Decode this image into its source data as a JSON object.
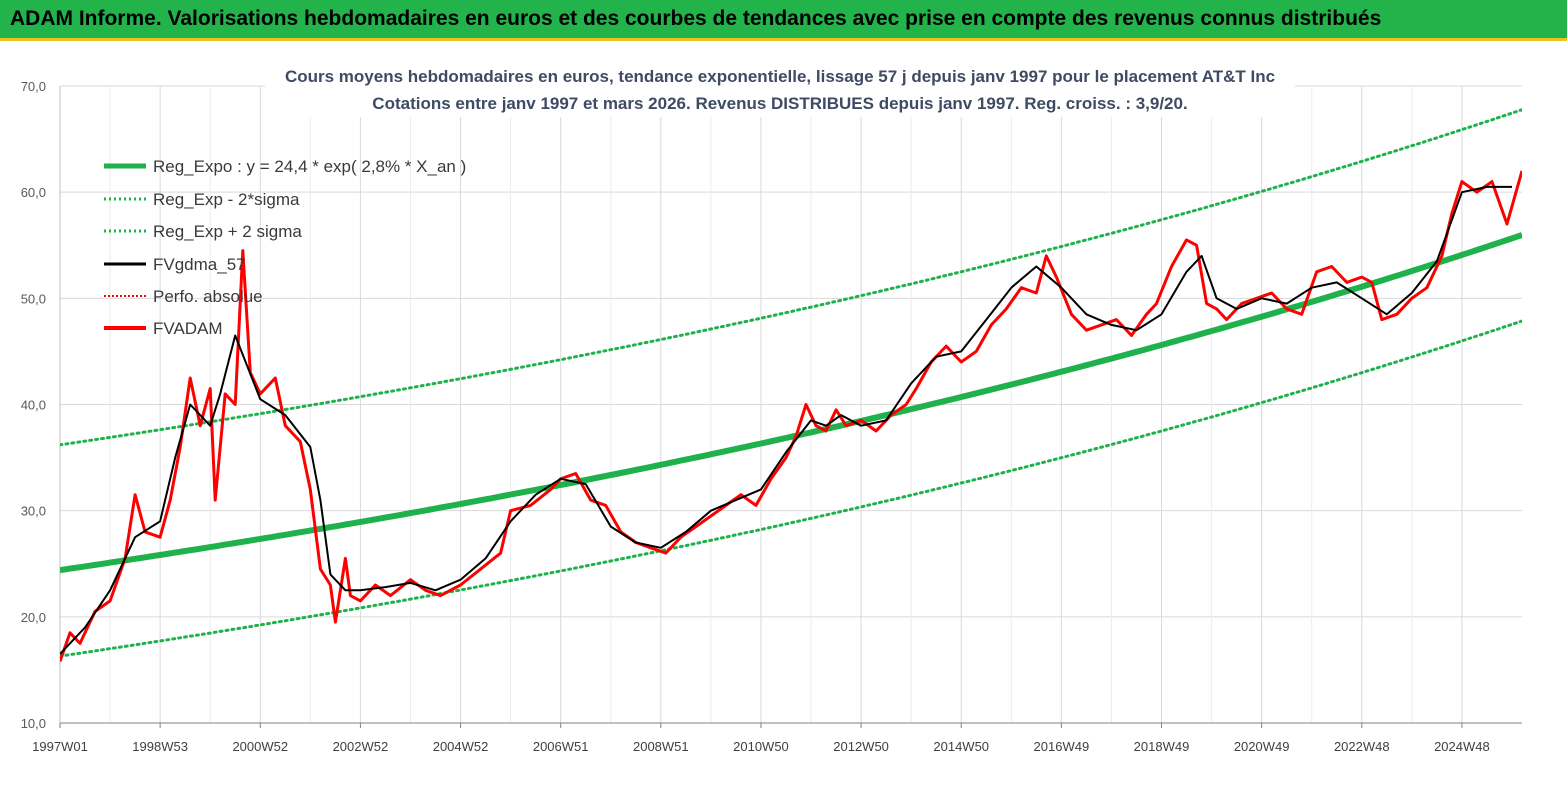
{
  "banner": {
    "title": "ADAM Informe. Valorisations hebdomadaires en euros et des courbes de tendances avec prise en compte des revenus connus distribués"
  },
  "colors": {
    "banner_bg": "#22b34a",
    "reg_expo": "#1fb14b",
    "reg_band": "#1fb14b",
    "fvgdma": "#000000",
    "perfo": "#ff0000",
    "fvadam": "#ff0000",
    "grid": "#d9d9d9"
  },
  "chart_data": {
    "type": "line",
    "title": "Cours moyens hebdomadaires en euros, tendance exponentielle, lissage 57 j depuis janv 1997 pour le placement AT&T Inc",
    "subtitle": "Cotations entre janv 1997 et mars 2026. Revenus DISTRIBUES depuis janv 1997. Reg. croiss. : 3,9/20.",
    "xlabel": "",
    "ylabel": "",
    "ylim": [
      10,
      70
    ],
    "xlim": [
      1997.0,
      2026.2
    ],
    "y_ticks": [
      "10,0",
      "20,0",
      "30,0",
      "40,0",
      "50,0",
      "60,0",
      "70,0"
    ],
    "y_tick_values": [
      10,
      20,
      30,
      40,
      50,
      60,
      70
    ],
    "x_ticks": [
      "1997W01",
      "1998W53",
      "2000W52",
      "2002W52",
      "2004W52",
      "2006W51",
      "2008W51",
      "2010W50",
      "2012W50",
      "2014W50",
      "2016W49",
      "2018W49",
      "2020W49",
      "2022W48",
      "2024W48"
    ],
    "x_tick_values": [
      1997.0,
      1999.0,
      2001.0,
      2003.0,
      2005.0,
      2007.0,
      2009.0,
      2011.0,
      2013.0,
      2015.0,
      2017.0,
      2019.0,
      2021.0,
      2023.0,
      2025.0
    ],
    "legend_position": "top-left",
    "series": [
      {
        "name": "Reg_Expo : y = 24,4 * exp( 2,8% *  X_an )",
        "style": "thick",
        "formula": {
          "a": 24.4,
          "rate": 0.02843,
          "offset": 0
        }
      },
      {
        "name": "Reg_Exp - 2*sigma",
        "style": "dotted",
        "formula": {
          "a": 24.4,
          "rate": 0.02843,
          "offset": -8.1
        }
      },
      {
        "name": "Reg_Exp + 2 sigma",
        "style": "dotted",
        "formula": {
          "a": 24.4,
          "rate": 0.02843,
          "offset": 11.8
        }
      },
      {
        "name": "FVgdma_57",
        "style": "solid",
        "x": [
          1997.0,
          1997.5,
          1998.0,
          1998.5,
          1999.0,
          1999.3,
          1999.6,
          2000.0,
          2000.2,
          2000.5,
          2001.0,
          2001.5,
          2002.0,
          2002.2,
          2002.4,
          2002.7,
          2003.0,
          2003.5,
          2004.0,
          2004.5,
          2005.0,
          2005.5,
          2006.0,
          2006.5,
          2007.0,
          2007.5,
          2008.0,
          2008.5,
          2009.0,
          2009.5,
          2010.0,
          2010.5,
          2011.0,
          2011.5,
          2012.0,
          2012.3,
          2012.6,
          2013.0,
          2013.5,
          2014.0,
          2014.5,
          2015.0,
          2015.5,
          2016.0,
          2016.5,
          2017.0,
          2017.5,
          2018.0,
          2018.5,
          2019.0,
          2019.5,
          2019.8,
          2020.1,
          2020.5,
          2021.0,
          2021.5,
          2022.0,
          2022.5,
          2023.0,
          2023.5,
          2024.0,
          2024.5,
          2025.0,
          2025.5,
          2026.0
        ],
        "values": [
          16.5,
          19.0,
          22.5,
          27.5,
          29.0,
          35.0,
          40.0,
          38.0,
          41.0,
          46.5,
          40.5,
          39.0,
          36.0,
          31.0,
          24.0,
          22.5,
          22.5,
          22.8,
          23.2,
          22.5,
          23.5,
          25.5,
          29.0,
          31.5,
          33.0,
          32.5,
          28.5,
          27.0,
          26.5,
          28.0,
          30.0,
          31.0,
          32.0,
          35.5,
          38.5,
          38.0,
          39.0,
          38.0,
          38.5,
          42.0,
          44.5,
          45.0,
          48.0,
          51.0,
          53.0,
          51.0,
          48.5,
          47.5,
          47.0,
          48.5,
          52.5,
          54.0,
          50.0,
          49.0,
          50.0,
          49.5,
          51.0,
          51.5,
          50.0,
          48.5,
          50.5,
          53.5,
          60.0,
          60.5,
          60.5
        ]
      },
      {
        "name": "Perfo. absolue",
        "style": "dotted-red"
      },
      {
        "name": "FVADAM",
        "style": "thick-red",
        "x": [
          1997.0,
          1997.2,
          1997.4,
          1997.7,
          1998.0,
          1998.3,
          1998.5,
          1998.7,
          1999.0,
          1999.2,
          1999.4,
          1999.6,
          1999.8,
          2000.0,
          2000.1,
          2000.3,
          2000.5,
          2000.65,
          2000.8,
          2001.0,
          2001.3,
          2001.5,
          2001.8,
          2002.0,
          2002.2,
          2002.4,
          2002.5,
          2002.7,
          2002.8,
          2003.0,
          2003.3,
          2003.6,
          2004.0,
          2004.3,
          2004.6,
          2005.0,
          2005.4,
          2005.8,
          2006.0,
          2006.4,
          2006.8,
          2007.0,
          2007.3,
          2007.6,
          2007.9,
          2008.2,
          2008.5,
          2008.8,
          2009.1,
          2009.4,
          2009.7,
          2010.0,
          2010.3,
          2010.6,
          2010.9,
          2011.2,
          2011.5,
          2011.7,
          2011.9,
          2012.1,
          2012.3,
          2012.5,
          2012.7,
          2013.0,
          2013.3,
          2013.6,
          2013.9,
          2014.1,
          2014.4,
          2014.7,
          2015.0,
          2015.3,
          2015.6,
          2015.9,
          2016.2,
          2016.5,
          2016.7,
          2016.9,
          2017.2,
          2017.5,
          2017.8,
          2018.1,
          2018.4,
          2018.7,
          2018.9,
          2019.2,
          2019.5,
          2019.7,
          2019.9,
          2020.1,
          2020.3,
          2020.6,
          2020.9,
          2021.2,
          2021.5,
          2021.8,
          2022.1,
          2022.4,
          2022.7,
          2023.0,
          2023.2,
          2023.4,
          2023.7,
          2024.0,
          2024.3,
          2024.6,
          2024.8,
          2025.0,
          2025.3,
          2025.6,
          2025.9,
          2026.2
        ],
        "values": [
          15.8,
          18.5,
          17.5,
          20.5,
          21.5,
          25.5,
          31.5,
          28.0,
          27.5,
          31.0,
          36.0,
          42.5,
          38.0,
          41.5,
          31.0,
          41.0,
          40.0,
          54.5,
          43.0,
          41.0,
          42.5,
          38.0,
          36.5,
          32.0,
          24.5,
          23.0,
          19.5,
          25.5,
          22.0,
          21.5,
          23.0,
          22.0,
          23.5,
          22.5,
          22.0,
          23.0,
          24.5,
          26.0,
          30.0,
          30.5,
          32.0,
          33.0,
          33.5,
          31.0,
          30.5,
          28.0,
          27.0,
          26.5,
          26.0,
          27.5,
          28.5,
          29.5,
          30.5,
          31.5,
          30.5,
          33.0,
          35.0,
          37.0,
          40.0,
          38.0,
          37.5,
          39.5,
          38.0,
          38.5,
          37.5,
          39.0,
          40.0,
          41.5,
          44.0,
          45.5,
          44.0,
          45.0,
          47.5,
          49.0,
          51.0,
          50.5,
          54.0,
          52.0,
          48.5,
          47.0,
          47.5,
          48.0,
          46.5,
          48.5,
          49.5,
          53.0,
          55.5,
          55.0,
          49.5,
          49.0,
          48.0,
          49.5,
          50.0,
          50.5,
          49.0,
          48.5,
          52.5,
          53.0,
          51.5,
          52.0,
          51.5,
          48.0,
          48.5,
          50.0,
          51.0,
          54.0,
          58.0,
          61.0,
          60.0,
          61.0,
          57.0,
          62.0
        ]
      }
    ]
  }
}
